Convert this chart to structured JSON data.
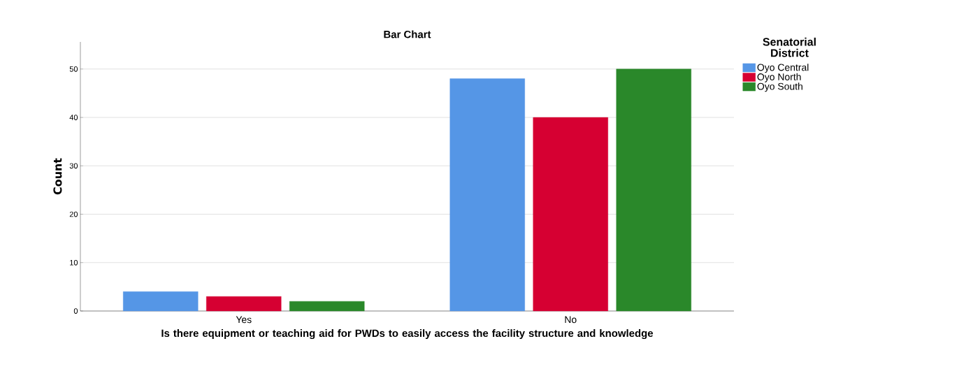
{
  "chart_data": {
    "type": "bar",
    "title": "Bar Chart",
    "xlabel": "Is there equipment or teaching aid for PWDs to easily access the facility structure and knowledge",
    "ylabel": "Count",
    "legend_title": "Senatorial District",
    "categories": [
      "Yes",
      "No"
    ],
    "series": [
      {
        "name": "Oyo Central",
        "color": "#5596e6",
        "values": [
          4,
          48
        ]
      },
      {
        "name": "Oyo North",
        "color": "#d60032",
        "values": [
          3,
          40
        ]
      },
      {
        "name": "Oyo South",
        "color": "#2a882a",
        "values": [
          2,
          50
        ]
      }
    ],
    "ylim": [
      0,
      55.6
    ],
    "yticks": [
      0,
      10,
      20,
      30,
      40,
      50
    ],
    "grid": "y",
    "legend": "top right"
  }
}
